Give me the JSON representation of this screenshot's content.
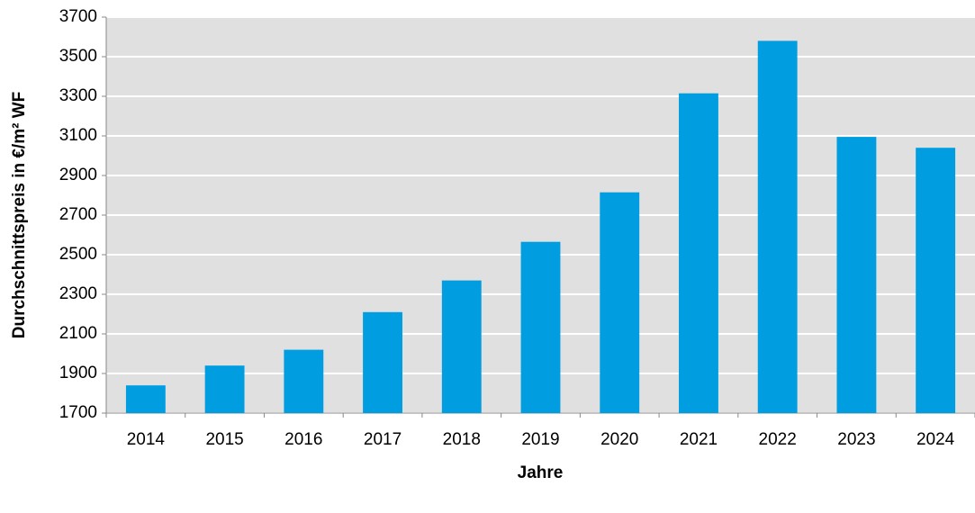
{
  "chart_data": {
    "type": "bar",
    "categories": [
      "2014",
      "2015",
      "2016",
      "2017",
      "2018",
      "2019",
      "2020",
      "2021",
      "2022",
      "2023",
      "2024"
    ],
    "values": [
      1840,
      1940,
      2020,
      2210,
      2370,
      2565,
      2815,
      3315,
      3580,
      3095,
      3040
    ],
    "color": "#009ee0",
    "xlabel": "Jahre",
    "ylabel": "Durchschnittspreis in €/m² WF",
    "ylim": [
      1700,
      3700
    ],
    "yticks": [
      1700,
      1900,
      2100,
      2300,
      2500,
      2700,
      2900,
      3100,
      3300,
      3500,
      3700
    ],
    "grid": true
  }
}
